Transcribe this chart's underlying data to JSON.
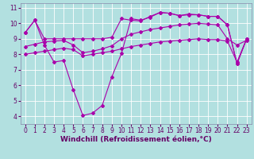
{
  "xlabel": "Windchill (Refroidissement éolien,°C)",
  "bg_color": "#b2e0e0",
  "grid_color": "#ffffff",
  "line_color": "#aa00aa",
  "line1": [
    9.4,
    10.2,
    9.0,
    9.0,
    9.0,
    9.0,
    9.0,
    9.0,
    9.0,
    9.1,
    10.3,
    10.2,
    10.15,
    10.45,
    10.7,
    10.65,
    10.5,
    10.6,
    10.55,
    10.45,
    10.45,
    9.9,
    7.4,
    9.0
  ],
  "line2": [
    9.4,
    10.2,
    8.6,
    7.5,
    7.6,
    5.7,
    4.05,
    4.2,
    4.7,
    6.55,
    8.05,
    10.3,
    10.2,
    10.4,
    10.7,
    10.65,
    10.5,
    10.55,
    10.55,
    10.45,
    10.45,
    9.9,
    7.4,
    9.0
  ],
  "line3": [
    8.5,
    8.65,
    8.8,
    8.85,
    8.9,
    8.6,
    8.1,
    8.2,
    8.35,
    8.55,
    9.0,
    9.3,
    9.45,
    9.6,
    9.7,
    9.8,
    9.9,
    9.95,
    10.0,
    9.95,
    9.9,
    9.0,
    8.6,
    8.9
  ],
  "line4": [
    8.0,
    8.1,
    8.2,
    8.3,
    8.4,
    8.3,
    7.9,
    8.0,
    8.1,
    8.2,
    8.35,
    8.5,
    8.6,
    8.7,
    8.8,
    8.85,
    8.9,
    8.95,
    9.0,
    8.95,
    8.95,
    8.85,
    7.5,
    9.0
  ],
  "ylim": [
    3.5,
    11.3
  ],
  "yticks": [
    4,
    5,
    6,
    7,
    8,
    9,
    10,
    11
  ],
  "xticks": [
    0,
    1,
    2,
    3,
    4,
    5,
    6,
    7,
    8,
    9,
    10,
    11,
    12,
    13,
    14,
    15,
    16,
    17,
    18,
    19,
    20,
    21,
    22,
    23
  ],
  "xlim": [
    -0.5,
    23.5
  ],
  "marker": "D",
  "markersize": 2.0,
  "linewidth": 0.8,
  "xlabel_fontsize": 6.5,
  "tick_fontsize": 5.5,
  "xlabel_color": "#660066",
  "tick_color": "#660066",
  "spine_color": "#8888aa"
}
